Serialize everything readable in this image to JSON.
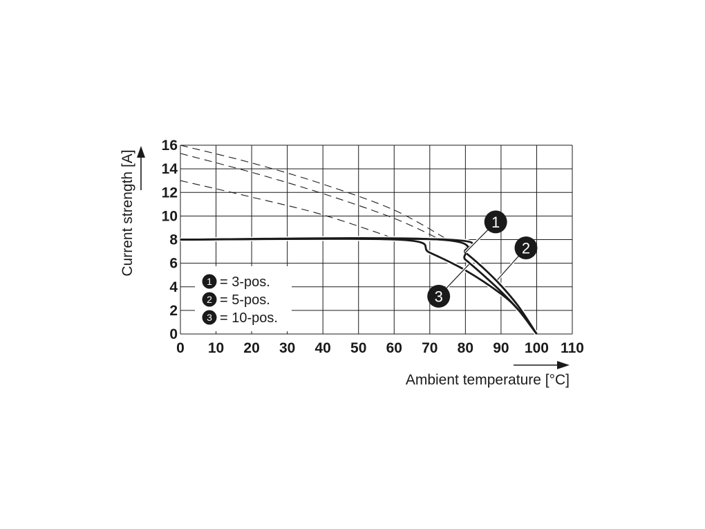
{
  "chart_data": {
    "type": "line",
    "xlabel": "Ambient temperature [°C]",
    "ylabel": "Current strength [A]",
    "xlim": [
      0,
      110
    ],
    "ylim": [
      0,
      16
    ],
    "x_ticks": [
      "0",
      "10",
      "20",
      "30",
      "40",
      "50",
      "60",
      "70",
      "80",
      "90",
      "100",
      "110"
    ],
    "y_ticks": [
      "0",
      "2",
      "4",
      "6",
      "8",
      "10",
      "12",
      "14",
      "16"
    ],
    "grid": true,
    "legend_position": "lower-left",
    "legend": [
      {
        "marker": "1",
        "label": "= 3-pos."
      },
      {
        "marker": "2",
        "label": "= 5-pos."
      },
      {
        "marker": "3",
        "label": "= 10-pos."
      }
    ],
    "series": [
      {
        "marker": "1",
        "style": "solid",
        "points": [
          [
            0,
            8
          ],
          [
            75,
            8
          ],
          [
            80,
            6.9
          ],
          [
            85,
            5.6
          ],
          [
            90,
            4.1
          ],
          [
            95,
            2.3
          ],
          [
            100,
            0
          ]
        ]
      },
      {
        "marker": "2",
        "style": "solid",
        "points": [
          [
            0,
            8
          ],
          [
            73,
            8
          ],
          [
            80,
            6.3
          ],
          [
            85,
            5.0
          ],
          [
            90,
            3.6
          ],
          [
            95,
            2.0
          ],
          [
            100,
            0
          ]
        ]
      },
      {
        "marker": "3",
        "style": "solid",
        "points": [
          [
            0,
            8
          ],
          [
            61,
            8
          ],
          [
            70,
            6.9
          ],
          [
            80,
            5.4
          ],
          [
            90,
            3.4
          ],
          [
            95,
            2.0
          ],
          [
            100,
            0
          ]
        ]
      },
      {
        "marker": "1",
        "style": "dashed",
        "points": [
          [
            0,
            16
          ],
          [
            20,
            14.5
          ],
          [
            40,
            12.7
          ],
          [
            60,
            10.5
          ],
          [
            75,
            8
          ]
        ]
      },
      {
        "marker": "2",
        "style": "dashed",
        "points": [
          [
            0,
            15.3
          ],
          [
            20,
            13.7
          ],
          [
            40,
            11.9
          ],
          [
            60,
            9.8
          ],
          [
            73,
            8
          ]
        ]
      },
      {
        "marker": "3",
        "style": "dashed",
        "points": [
          [
            0,
            13
          ],
          [
            20,
            11.6
          ],
          [
            40,
            10.1
          ],
          [
            61,
            8
          ]
        ]
      }
    ],
    "callouts": [
      {
        "marker": "1",
        "badge_at": [
          88.5,
          9.5
        ],
        "target": [
          80,
          6.9
        ]
      },
      {
        "marker": "2",
        "badge_at": [
          97,
          7.3
        ],
        "target": [
          89,
          4.6
        ]
      },
      {
        "marker": "3",
        "badge_at": [
          72.5,
          3.2
        ],
        "target": [
          81,
          5.9
        ]
      }
    ]
  }
}
